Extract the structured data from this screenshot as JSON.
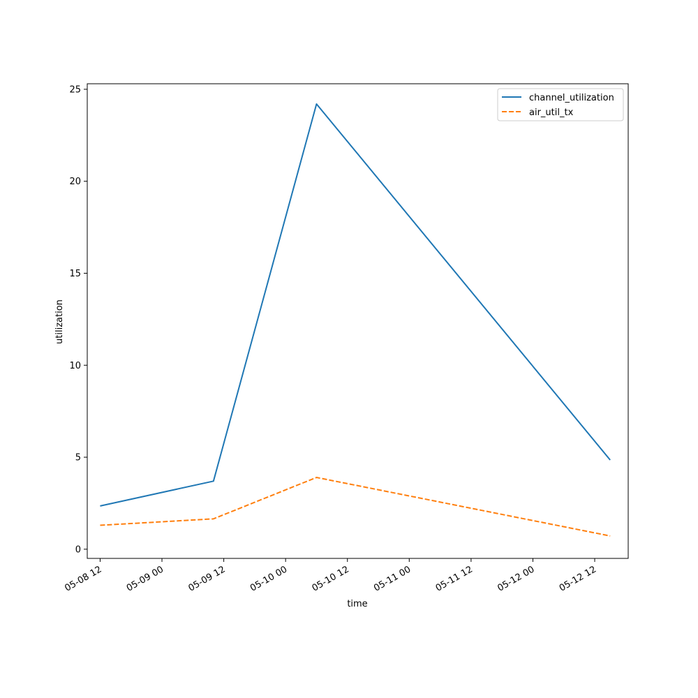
{
  "chart_data": {
    "type": "line",
    "title": "",
    "xlabel": "time",
    "ylabel": "utilization",
    "x_ticks": [
      "05-08 12",
      "05-09 00",
      "05-09 12",
      "05-10 00",
      "05-10 12",
      "05-11 00",
      "05-11 12",
      "05-12 00",
      "05-12 12"
    ],
    "y_ticks": [
      "0",
      "5",
      "10",
      "15",
      "20",
      "25"
    ],
    "xlim": [
      "2025-05-08 09:30",
      "2025-05-12 18:30"
    ],
    "ylim": [
      -0.5,
      25.3
    ],
    "grid": false,
    "legend_position": "upper right",
    "x": [
      "2025-05-08 12:00",
      "2025-05-09 10:00",
      "2025-05-10 06:00",
      "2025-05-12 15:00"
    ],
    "series": [
      {
        "name": "channel_utilization",
        "values": [
          2.35,
          3.7,
          24.2,
          4.85
        ],
        "color": "#1f77b4",
        "style": "solid"
      },
      {
        "name": "air_util_tx",
        "values": [
          1.3,
          1.65,
          3.9,
          0.72
        ],
        "color": "#ff7f0e",
        "style": "dashed"
      }
    ]
  }
}
